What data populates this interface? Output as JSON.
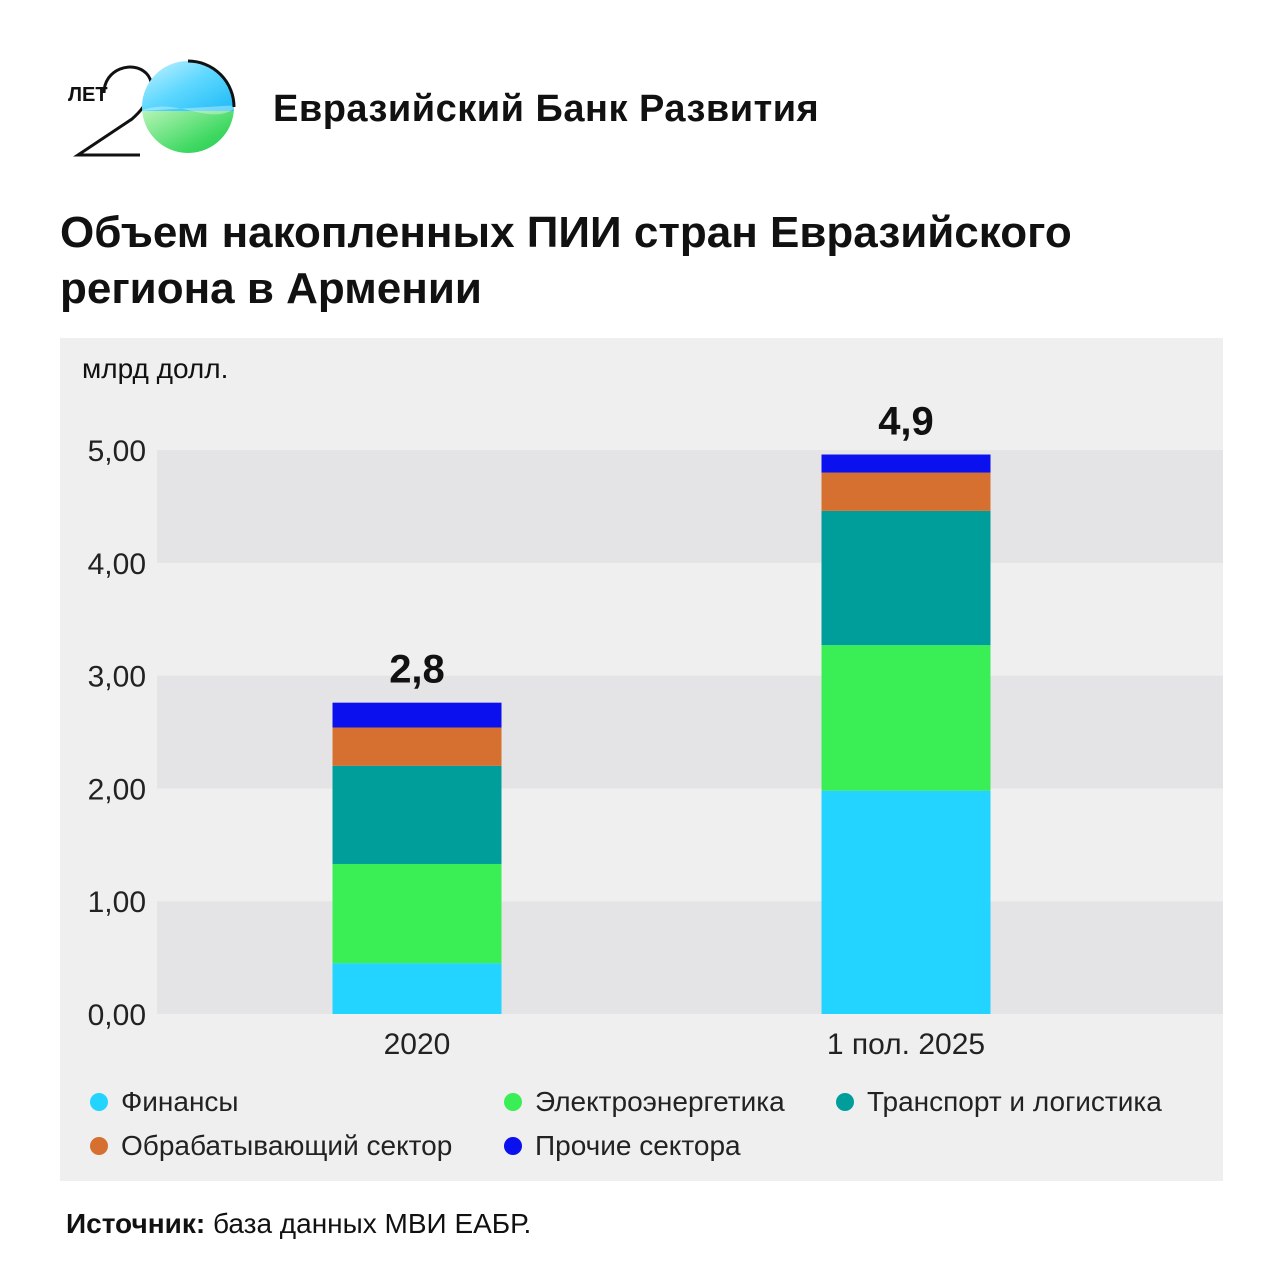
{
  "brand": {
    "logo_text": "ЛЕТ 20",
    "name": "Евразийский Банк Развития"
  },
  "title": "Объем накопленных ПИИ стран Евразийского региона в Армении",
  "unit": "млрд долл.",
  "source": {
    "label": "Источник:",
    "text": "база данных МВИ ЕАБР."
  },
  "colors": {
    "finance": "#22d4ff",
    "energy": "#3aef55",
    "transport": "#009e9b",
    "manufacturing": "#d67030",
    "other": "#0a10ee",
    "band_dark": "#e4e4e6",
    "band_light": "#efefef"
  },
  "chart_data": {
    "type": "bar",
    "stacked": true,
    "title": "Объем накопленных ПИИ стран Евразийского региона в Армении",
    "ylabel": "млрд долл.",
    "xlabel": "",
    "ylim": [
      0,
      5
    ],
    "yticks": [
      "0,00",
      "1,00",
      "2,00",
      "3,00",
      "4,00",
      "5,00"
    ],
    "categories": [
      "2020",
      "1 пол. 2025"
    ],
    "totals": [
      "2,8",
      "4,9"
    ],
    "series": [
      {
        "name": "Финансы",
        "key": "finance",
        "color": "#22d4ff",
        "values": [
          0.45,
          1.98
        ]
      },
      {
        "name": "Электроэнергетика",
        "key": "energy",
        "color": "#3aef55",
        "values": [
          0.88,
          1.29
        ]
      },
      {
        "name": "Транспорт и логистика",
        "key": "transport",
        "color": "#009e9b",
        "values": [
          0.87,
          1.19
        ]
      },
      {
        "name": "Обрабатывающий сектор",
        "key": "manufacturing",
        "color": "#d67030",
        "values": [
          0.34,
          0.34
        ]
      },
      {
        "name": "Прочие сектора",
        "key": "other",
        "color": "#0a10ee",
        "values": [
          0.22,
          0.16
        ]
      }
    ],
    "legend_position": "bottom"
  }
}
